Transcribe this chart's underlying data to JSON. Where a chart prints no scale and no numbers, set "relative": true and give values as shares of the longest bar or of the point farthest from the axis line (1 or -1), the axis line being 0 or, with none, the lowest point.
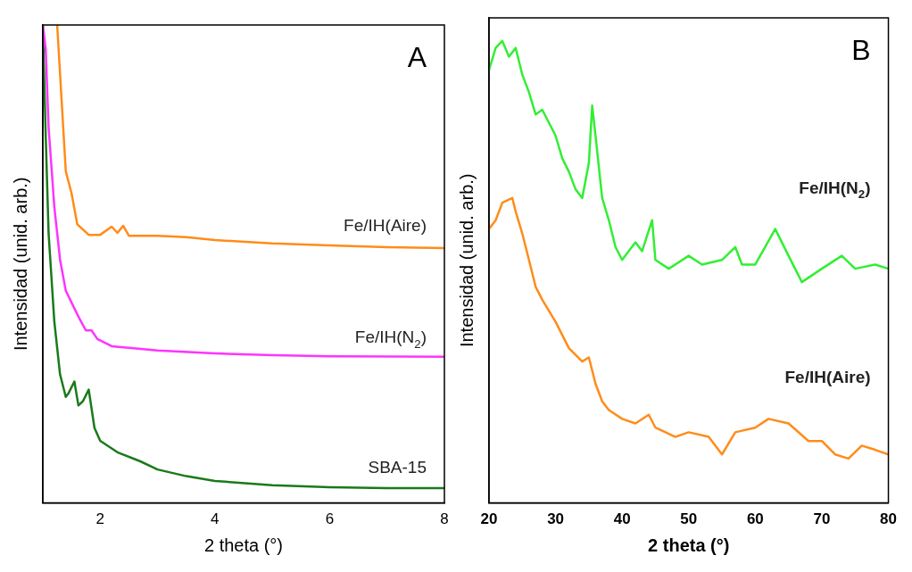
{
  "chart_data": [
    {
      "type": "line",
      "relative": true,
      "xlabel": "2 theta (°)",
      "ylabel": "Intensidad (unid. arb.)",
      "xlim": [
        1,
        8
      ],
      "xticks": [
        2,
        4,
        6,
        8
      ],
      "grid": false,
      "legend": false,
      "annotations": [
        "A"
      ],
      "series": [
        {
          "name": "Fe/IH(Aire)",
          "color": "#ff8c1a",
          "x": [
            1.25,
            1.4,
            1.5,
            1.6,
            1.8,
            2.0,
            2.2,
            2.3,
            2.4,
            2.5,
            3,
            3.5,
            4,
            5,
            6,
            7,
            8
          ],
          "values": [
            1,
            0.694,
            0.648,
            0.583,
            0.561,
            0.561,
            0.578,
            0.565,
            0.58,
            0.559,
            0.559,
            0.556,
            0.55,
            0.543,
            0.539,
            0.535,
            0.533
          ]
        },
        {
          "name": "Fe/IH(N$_{2}$)",
          "color": "#ff33ff",
          "x": [
            1,
            1.05,
            1.1,
            1.2,
            1.3,
            1.4,
            1.55,
            1.65,
            1.75,
            1.85,
            1.95,
            2.2,
            3,
            4,
            5,
            6,
            8
          ],
          "values": [
            1,
            0.95,
            0.787,
            0.62,
            0.509,
            0.444,
            0.407,
            0.383,
            0.361,
            0.361,
            0.343,
            0.328,
            0.319,
            0.313,
            0.309,
            0.307,
            0.306
          ]
        },
        {
          "name": "SBA-15",
          "color": "#1a7a1a",
          "x": [
            1,
            1.05,
            1.1,
            1.2,
            1.3,
            1.4,
            1.45,
            1.55,
            1.62,
            1.7,
            1.8,
            1.9,
            2.0,
            2.3,
            2.7,
            3,
            3.5,
            4,
            5,
            6,
            7,
            8
          ],
          "values": [
            1,
            0.769,
            0.565,
            0.38,
            0.269,
            0.222,
            0.23,
            0.254,
            0.204,
            0.213,
            0.237,
            0.157,
            0.13,
            0.106,
            0.087,
            0.07,
            0.056,
            0.046,
            0.037,
            0.033,
            0.031,
            0.031
          ]
        }
      ]
    },
    {
      "type": "line",
      "relative": true,
      "xlabel": "2 theta (°)",
      "ylabel": "Intensidad (unid. arb.)",
      "xlim": [
        20,
        80
      ],
      "xticks": [
        20,
        30,
        40,
        50,
        60,
        70,
        80
      ],
      "grid": false,
      "legend": false,
      "annotations": [
        "B"
      ],
      "series": [
        {
          "name": "Fe/IH(N$_{2}$)",
          "color": "#33ee33",
          "x": [
            20,
            21,
            22,
            23,
            24,
            25,
            26,
            27,
            28,
            30,
            31,
            32,
            33,
            34,
            35,
            35.5,
            36,
            37,
            38,
            39,
            40,
            42,
            43,
            44.5,
            45,
            47,
            50,
            52,
            55,
            57,
            58,
            60,
            63,
            65,
            67,
            70,
            73,
            75,
            78,
            80
          ],
          "values": [
            0.937,
            0.985,
            1,
            0.966,
            0.985,
            0.927,
            0.889,
            0.841,
            0.851,
            0.795,
            0.746,
            0.717,
            0.679,
            0.66,
            0.736,
            0.86,
            0.795,
            0.66,
            0.612,
            0.554,
            0.526,
            0.564,
            0.545,
            0.612,
            0.526,
            0.507,
            0.535,
            0.516,
            0.526,
            0.554,
            0.516,
            0.516,
            0.593,
            0.535,
            0.478,
            0.507,
            0.535,
            0.507,
            0.516,
            0.507
          ]
        },
        {
          "name": "Fe/IH(Aire)",
          "color": "#ff8c1a",
          "x": [
            20,
            21,
            22,
            23.5,
            24,
            25,
            26,
            27,
            28,
            30,
            32,
            34,
            35,
            36,
            37,
            38,
            40,
            42,
            44,
            45,
            48,
            50,
            53,
            55,
            57,
            60,
            62,
            65,
            68,
            70,
            72,
            74,
            76,
            78,
            80
          ],
          "values": [
            0.593,
            0.612,
            0.65,
            0.66,
            0.631,
            0.583,
            0.526,
            0.468,
            0.44,
            0.392,
            0.335,
            0.306,
            0.315,
            0.258,
            0.22,
            0.201,
            0.182,
            0.172,
            0.191,
            0.163,
            0.143,
            0.153,
            0.143,
            0.105,
            0.153,
            0.163,
            0.182,
            0.172,
            0.134,
            0.134,
            0.105,
            0.096,
            0.124,
            0.115,
            0.105
          ]
        }
      ]
    }
  ]
}
